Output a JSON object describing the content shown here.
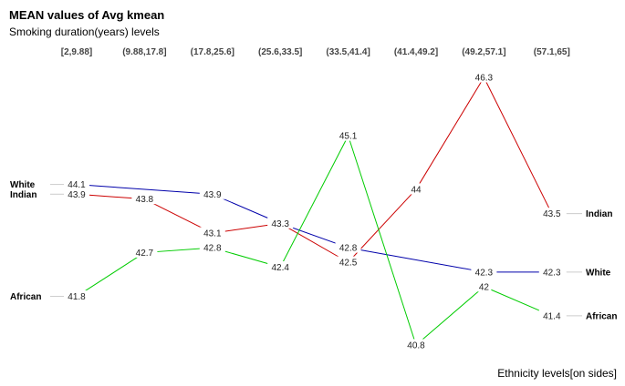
{
  "chart_data": {
    "type": "line",
    "title": "MEAN values of Avg kmean",
    "subtitle": "Smoking duration(years) levels",
    "xlabel": "Ethnicity levels[on sides]",
    "categories": [
      "[2,9.88]",
      "(9.88,17.8]",
      "(17.8,25.6]",
      "(25.6,33.5]",
      "(33.5,41.4]",
      "(41.4,49.2]",
      "(49.2,57.1]",
      "(57.1,65]"
    ],
    "ylim": [
      40.8,
      46.3
    ],
    "grid": false,
    "series": [
      {
        "name": "White",
        "color": "#0000aa",
        "values": [
          44.1,
          null,
          43.9,
          43.3,
          42.8,
          null,
          42.3,
          42.3
        ],
        "labels": [
          "44.1",
          "",
          "43.9",
          "43.3",
          "42.8",
          "",
          "42.3",
          "42.3"
        ]
      },
      {
        "name": "Indian",
        "color": "#cc0000",
        "values": [
          43.9,
          43.8,
          43.1,
          43.3,
          42.5,
          44,
          46.3,
          43.5
        ],
        "labels": [
          "43.9",
          "43.8",
          "43.1",
          "",
          "42.5",
          "44",
          "46.3",
          "43.5"
        ]
      },
      {
        "name": "African",
        "color": "#00cc00",
        "values": [
          41.8,
          42.7,
          42.8,
          42.4,
          45.1,
          40.8,
          42,
          41.4
        ],
        "labels": [
          "41.8",
          "42.7",
          "42.8",
          "42.4",
          "45.1",
          "40.8",
          "42",
          "41.4"
        ]
      }
    ]
  }
}
